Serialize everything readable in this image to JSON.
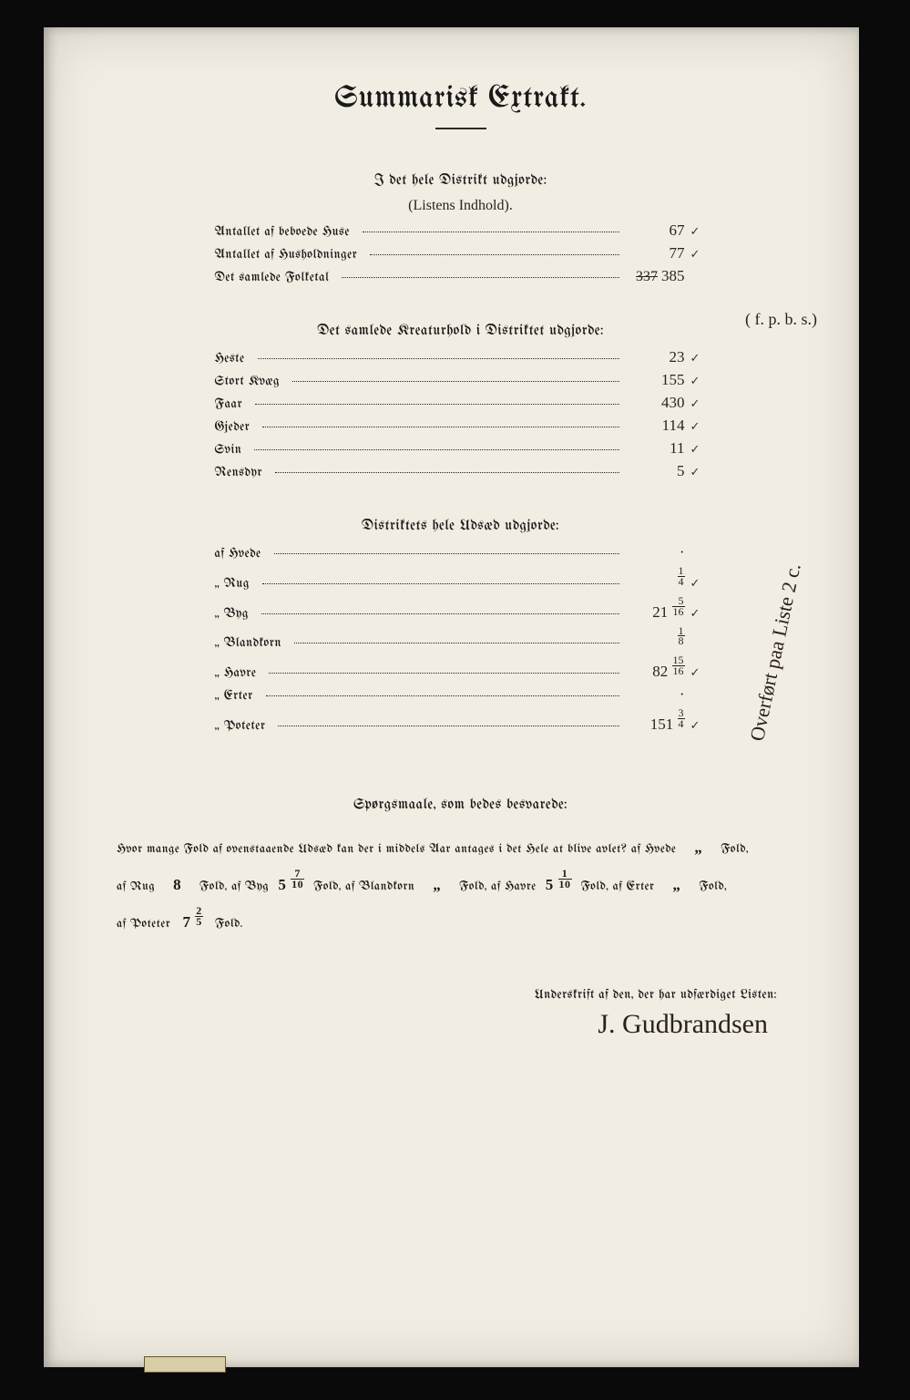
{
  "title": "Summarisk Extrakt.",
  "section1": {
    "heading": "I det hele Distrikt udgjorde:",
    "annot": "(Listens Indhold).",
    "rows": [
      {
        "label": "Antallet af beboede Huse",
        "value": "67",
        "check": "✓"
      },
      {
        "label": "Antallet af Husholdninger",
        "value": "77",
        "check": "✓"
      },
      {
        "label": "Det samlede Folketal",
        "strike": "337",
        "value": "385",
        "check": ""
      }
    ],
    "side_note": "( f. p. b. s.)"
  },
  "section2": {
    "heading": "Det samlede Kreaturhold i Distriktet udgjorde:",
    "rows": [
      {
        "label": "Heste",
        "value": "23",
        "check": "✓"
      },
      {
        "label": "Stort Kvæg",
        "value": "155",
        "check": "✓"
      },
      {
        "label": "Faar",
        "value": "430",
        "check": "✓"
      },
      {
        "label": "Gjeder",
        "value": "114",
        "check": "✓"
      },
      {
        "label": "Svin",
        "value": "11",
        "check": "✓"
      },
      {
        "label": "Rensdyr",
        "value": "5",
        "check": "✓"
      }
    ]
  },
  "section3": {
    "heading": "Distriktets hele Udsæd udgjorde:",
    "rows": [
      {
        "label": "af Hvede",
        "value": "·",
        "check": ""
      },
      {
        "label": "„ Rug",
        "value_html": "<span class='frac'><span class='n'>1</span><span class='d'>4</span></span>",
        "check": "✓"
      },
      {
        "label": "„ Byg",
        "value_html": "21 <span class='frac'><span class='n'>5</span><span class='d'>16</span></span>",
        "check": "✓"
      },
      {
        "label": "„ Blandkorn",
        "value_html": "<span class='frac'><span class='n'>1</span><span class='d'>8</span></span>",
        "check": ""
      },
      {
        "label": "„ Havre",
        "value_html": "82 <span class='frac'><span class='n'>15</span><span class='d'>16</span></span>",
        "check": "✓"
      },
      {
        "label": "„ Erter",
        "value": "·",
        "check": ""
      },
      {
        "label": "„ Poteter",
        "value_html": "151 <span class='frac'><span class='n'>3</span><span class='d'>4</span></span>",
        "check": "✓"
      }
    ],
    "vert_note": "Overført paa Liste 2 c."
  },
  "questions": {
    "heading": "Spørgsmaale, som bedes besvarede:",
    "text_pre": "Hvor mange Fold af ovenstaaende Udsæd kan der i middels Aar antages i det Hele at blive avlet?  af Hvede",
    "hvede": "„",
    "rug": "8",
    "byg_html": "5 <span class='frac'><span class='n'>7</span><span class='d'>10</span></span>",
    "bland": "„",
    "havre_html": "5 <span class='frac'><span class='n'>1</span><span class='d'>10</span></span>",
    "erter": "„",
    "poteter_html": "7 <span class='frac'><span class='n'>2</span><span class='d'>5</span></span>",
    "labels": {
      "fold": "Fold,",
      "fold_end": "Fold.",
      "af_rug": "af Rug",
      "af_byg": "Fold, af Byg",
      "af_bland": "Fold, af Blandkorn",
      "af_havre": "Fold, af Havre",
      "af_erter": "Fold, af Erter",
      "af_poteter": "af Poteter"
    }
  },
  "signature": {
    "label": "Underskrift af den, der har udfærdiget Listen:",
    "name": "J. Gudbrandsen"
  },
  "colors": {
    "paper": "#f2ede2",
    "ink": "#1a1a1a",
    "hand": "#2a2218",
    "frame": "#0a0a0a"
  }
}
